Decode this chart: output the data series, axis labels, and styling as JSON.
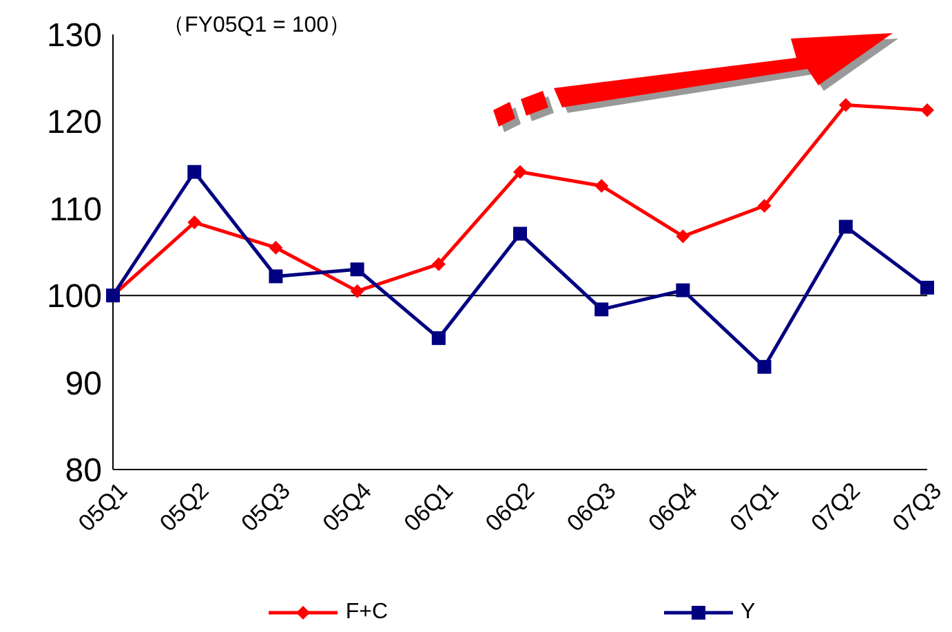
{
  "chart_data": {
    "type": "line",
    "categories": [
      "05Q1",
      "05Q2",
      "05Q3",
      "05Q4",
      "06Q1",
      "06Q2",
      "06Q3",
      "06Q4",
      "07Q1",
      "07Q2",
      "07Q3"
    ],
    "series": [
      {
        "name": "F+C",
        "color": "#ff0000",
        "marker": "diamond",
        "values": [
          100,
          108.4,
          105.5,
          100.5,
          103.6,
          114.2,
          112.6,
          106.8,
          110.3,
          121.9,
          121.3
        ]
      },
      {
        "name": "Y",
        "color": "#000080",
        "marker": "square",
        "values": [
          100,
          114.2,
          102.2,
          103,
          95.1,
          107.1,
          98.4,
          100.6,
          91.8,
          107.9,
          100.9
        ]
      }
    ],
    "ylim": [
      80,
      130
    ],
    "yticks": [
      80,
      90,
      100,
      110,
      120,
      130
    ],
    "grid": false,
    "legend": "bottom",
    "ref_lines": [
      {
        "axis": "y",
        "value": 100,
        "color": "#000000"
      }
    ],
    "annotations": [
      "（FY05Q1 = 100）"
    ]
  }
}
